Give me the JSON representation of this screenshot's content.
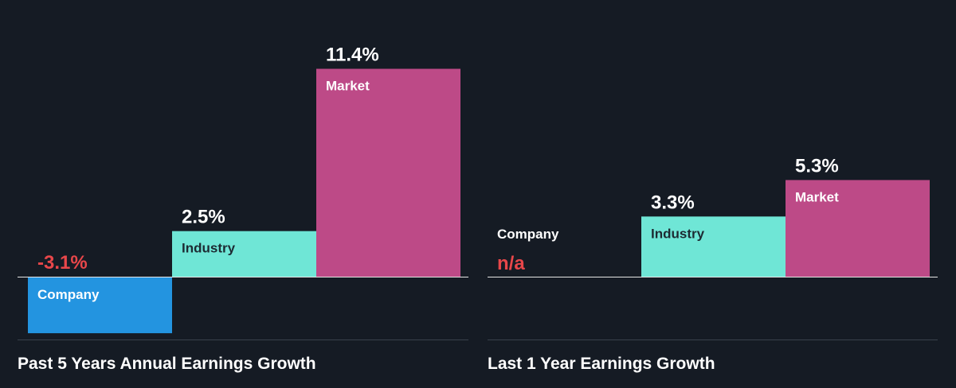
{
  "colors": {
    "background": "#151b24",
    "company": "#2394e0",
    "industry": "#6fe6d6",
    "market": "#bd4a87",
    "negative_text": "#e8474a",
    "text": "#ffffff",
    "bar_text_dark": "#1d2b33",
    "axis": "#e6e6e6",
    "divider": "#3a414c"
  },
  "chart_data": [
    {
      "type": "bar",
      "title": "Past 5 Years Annual Earnings Growth",
      "categories": [
        "Company",
        "Industry",
        "Market"
      ],
      "values": [
        -3.1,
        2.5,
        11.4
      ],
      "value_labels": [
        "-3.1%",
        "2.5%",
        "11.4%"
      ],
      "unit": "%",
      "ylim": [
        -3.9,
        11.4
      ],
      "grid": false,
      "legend": "none"
    },
    {
      "type": "bar",
      "title": "Last 1 Year Earnings Growth",
      "categories": [
        "Company",
        "Industry",
        "Market"
      ],
      "values": [
        null,
        3.3,
        5.3
      ],
      "value_labels": [
        "n/a",
        "3.3%",
        "5.3%"
      ],
      "unit": "%",
      "ylim": [
        -3.9,
        11.4
      ],
      "grid": false,
      "legend": "none"
    }
  ]
}
